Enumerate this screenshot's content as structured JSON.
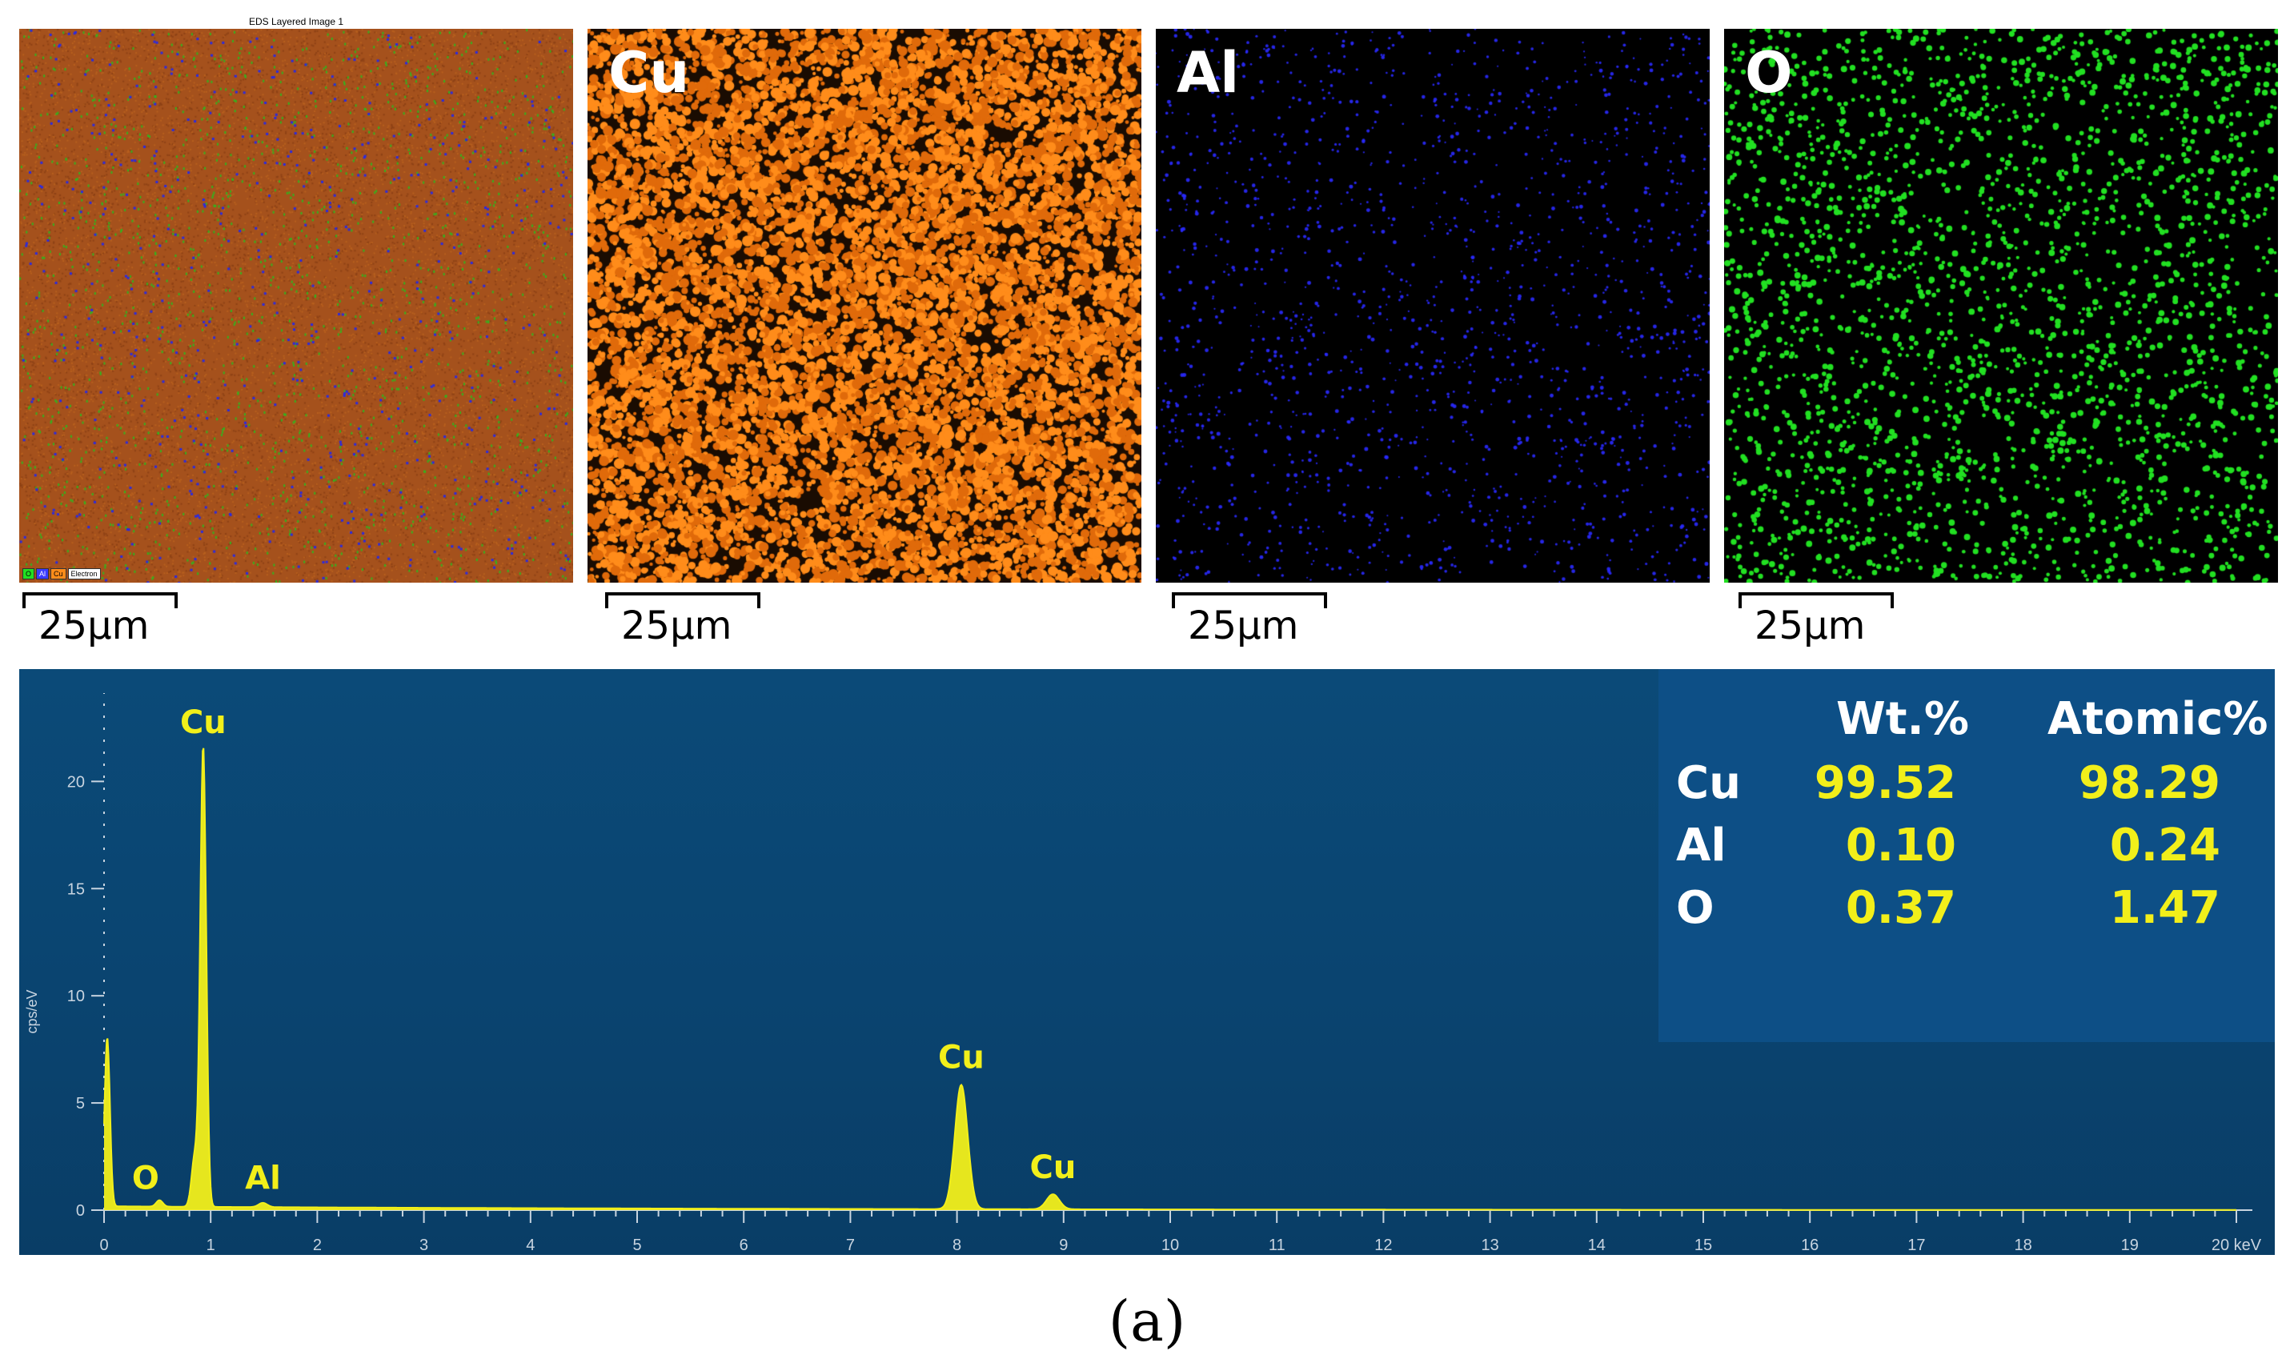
{
  "maps": {
    "layered_title": "EDS Layered Image 1",
    "legend": [
      "O",
      "Al",
      "Cu",
      "Electron"
    ],
    "panels": [
      {
        "id": "layered",
        "label": ""
      },
      {
        "id": "cu",
        "label": "Cu",
        "color": "#ff8c1a"
      },
      {
        "id": "al",
        "label": "Al",
        "color": "#1f1ff0"
      },
      {
        "id": "o",
        "label": "O",
        "color": "#22e022"
      }
    ],
    "scalebar": "25µm"
  },
  "chart_data": {
    "type": "line",
    "x_unit_label": "keV",
    "ylabel": "cps/eV",
    "xlim": [
      0,
      20
    ],
    "ylim": [
      0,
      23
    ],
    "x_ticks": [
      0,
      1,
      2,
      3,
      4,
      5,
      6,
      7,
      8,
      9,
      10,
      11,
      12,
      13,
      14,
      15,
      16,
      17,
      18,
      19
    ],
    "x_last_tick": "20 keV",
    "y_ticks": [
      0,
      5,
      10,
      15,
      20
    ],
    "series_color": "#f2ef1a",
    "peaks": [
      {
        "x": 0.03,
        "y": 7.9,
        "width": 0.025
      },
      {
        "x": 0.52,
        "y": 0.3,
        "width": 0.03
      },
      {
        "x": 0.85,
        "y": 2.3,
        "width": 0.03
      },
      {
        "x": 0.93,
        "y": 21.5,
        "width": 0.028
      },
      {
        "x": 1.49,
        "y": 0.2,
        "width": 0.04
      },
      {
        "x": 8.04,
        "y": 5.8,
        "width": 0.06
      },
      {
        "x": 8.9,
        "y": 0.7,
        "width": 0.06
      }
    ],
    "peak_labels": [
      {
        "text": "Cu",
        "x": 0.93,
        "y": 21.5
      },
      {
        "text": "O",
        "x": 0.45,
        "y": 0.4
      },
      {
        "text": "Al",
        "x": 1.49,
        "y": 0.4
      },
      {
        "text": "Cu",
        "x": 8.04,
        "y": 5.8
      },
      {
        "text": "Cu",
        "x": 8.9,
        "y": 0.9
      }
    ]
  },
  "quant_table": {
    "headers": [
      "Wt.%",
      "Atomic%"
    ],
    "rows": [
      {
        "element": "Cu",
        "wt": "99.52",
        "atomic": "98.29"
      },
      {
        "element": "Al",
        "wt": "0.10",
        "atomic": "0.24"
      },
      {
        "element": "O",
        "wt": "0.37",
        "atomic": "1.47"
      }
    ]
  },
  "caption": "(a)"
}
